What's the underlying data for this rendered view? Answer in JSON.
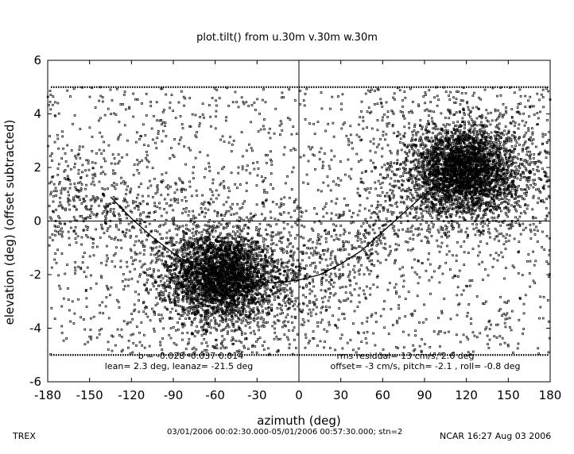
{
  "chart_data": {
    "type": "scatter",
    "title": "plot.tilt() from u.30m v.30m w.30m",
    "xlabel": "azimuth (deg)",
    "ylabel": "elevation (deg)  (offset subtracted)",
    "xlim": [
      -180,
      180
    ],
    "ylim": [
      -6,
      6
    ],
    "x_ticks": [
      "-180",
      "-150",
      "-120",
      "-90",
      "-60",
      "-30",
      "0",
      "30",
      "60",
      "90",
      "120",
      "150",
      "180"
    ],
    "y_ticks": [
      "-6",
      "-4",
      "-2",
      "0",
      "2",
      "4",
      "6"
    ],
    "reference_lines": {
      "x": 0,
      "y": 0
    },
    "clip_lines": [
      5,
      -5
    ],
    "scatter_clusters": [
      {
        "center_az": -55,
        "center_el": -2.1,
        "spread_az": 18,
        "spread_el": 0.8
      },
      {
        "center_az": 118,
        "center_el": 1.9,
        "spread_az": 17,
        "spread_el": 0.8
      }
    ],
    "fit_curve": {
      "x": [
        -135,
        -120,
        -105,
        -90,
        -75,
        -60,
        -45,
        -30,
        -15,
        0,
        15,
        30,
        45,
        60,
        75,
        90,
        105,
        120,
        135,
        150
      ],
      "y": [
        0.9,
        0.1,
        -0.6,
        -1.2,
        -1.7,
        -2.0,
        -2.2,
        -2.3,
        -2.3,
        -2.2,
        -2.0,
        -1.6,
        -1.1,
        -0.4,
        0.3,
        1.0,
        1.5,
        1.9,
        2.0,
        1.9
      ]
    },
    "annotations": {
      "coef": "b = -0.028 -0.037 0.014",
      "lean": "lean= 2.3 deg, leanaz= -21.5 deg",
      "rms": "rms residual= 13 cm/s, 2.6 deg",
      "offset": "offset= -3 cm/s, pitch= -2.1 , roll= -0.8 deg"
    }
  },
  "footer": {
    "left": "TREX",
    "center": "03/01/2006 00:02:30.000-05/01/2006 00:57:30.000; stn=2",
    "right": "NCAR 16:27 Aug 03 2006"
  }
}
